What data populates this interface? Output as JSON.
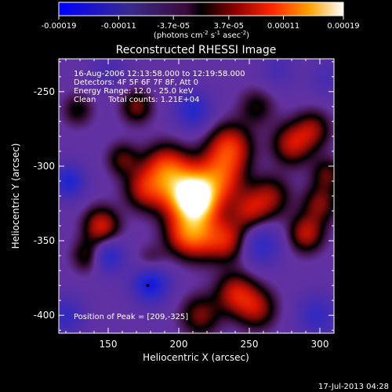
{
  "chart_data": {
    "type": "heatmap",
    "title": "Reconstructed RHESSI Image",
    "xlabel": "Heliocentric X (arcsec)",
    "ylabel": "Heliocentric Y (arcsec)",
    "xlim": [
      115,
      310
    ],
    "ylim": [
      -412,
      -228
    ],
    "xticks": [
      150,
      200,
      250,
      300
    ],
    "yticks": [
      -250,
      -300,
      -350,
      -400
    ],
    "colorbar": {
      "ticks": [
        "-0.00019",
        "-0.00011",
        "-3.7e-05",
        "3.7e-05",
        "0.00011",
        "0.00019"
      ],
      "range": [
        -0.00019,
        0.00019
      ],
      "unit_text": "(photons cm",
      "unit_exp1": "-2",
      "unit_mid": " s",
      "unit_exp2": "-1",
      "unit_mid2": " asec",
      "unit_exp3": "-2",
      "unit_close": ")"
    },
    "annotations": [
      "16-Aug-2006 12:13:58.000 to 12:19:58.000",
      "Detectors: 4F 5F 6F 7F 8F, Att 0",
      "Energy Range: 12.0 - 25.0 keV",
      "Clean     Total counts: 1.21E+04"
    ],
    "peak_label": "Position of Peak = [209,-325]",
    "peak": [
      209,
      -325
    ],
    "min_marker": [
      178,
      -380
    ],
    "blobs": [
      {
        "x": 212,
        "y": -322,
        "amp": 1.0,
        "s": 10
      },
      {
        "x": 200,
        "y": -315,
        "amp": 0.65,
        "s": 13
      },
      {
        "x": 228,
        "y": -308,
        "amp": 0.6,
        "s": 12
      },
      {
        "x": 236,
        "y": -287,
        "amp": 0.55,
        "s": 11
      },
      {
        "x": 190,
        "y": -300,
        "amp": 0.45,
        "s": 11
      },
      {
        "x": 175,
        "y": -315,
        "amp": 0.4,
        "s": 10
      },
      {
        "x": 215,
        "y": -345,
        "amp": 0.55,
        "s": 12
      },
      {
        "x": 235,
        "y": -350,
        "amp": 0.4,
        "s": 10
      },
      {
        "x": 250,
        "y": -330,
        "amp": 0.4,
        "s": 10
      },
      {
        "x": 265,
        "y": -320,
        "amp": 0.35,
        "s": 10
      },
      {
        "x": 280,
        "y": -285,
        "amp": 0.45,
        "s": 10
      },
      {
        "x": 295,
        "y": -275,
        "amp": 0.35,
        "s": 9
      },
      {
        "x": 290,
        "y": -345,
        "amp": 0.45,
        "s": 9
      },
      {
        "x": 300,
        "y": -325,
        "amp": 0.35,
        "s": 9
      },
      {
        "x": 305,
        "y": -305,
        "amp": 0.3,
        "s": 8
      },
      {
        "x": 145,
        "y": -340,
        "amp": 0.5,
        "s": 9
      },
      {
        "x": 160,
        "y": -295,
        "amp": 0.3,
        "s": 8
      },
      {
        "x": 170,
        "y": -260,
        "amp": 0.35,
        "s": 8
      },
      {
        "x": 240,
        "y": -385,
        "amp": 0.45,
        "s": 10
      },
      {
        "x": 255,
        "y": -395,
        "amp": 0.4,
        "s": 10
      },
      {
        "x": 215,
        "y": -400,
        "amp": 0.35,
        "s": 10
      },
      {
        "x": 135,
        "y": -360,
        "amp": 0.3,
        "s": 8
      },
      {
        "x": 180,
        "y": -365,
        "amp": 0.25,
        "s": 8
      },
      {
        "x": 128,
        "y": -262,
        "amp": 0.25,
        "s": 8
      },
      {
        "x": 203,
        "y": -345,
        "amp": 0.35,
        "s": 10
      },
      {
        "x": 255,
        "y": -260,
        "amp": 0.25,
        "s": 9
      },
      {
        "x": 180,
        "y": -378,
        "amp": -0.65,
        "s": 9
      },
      {
        "x": 122,
        "y": -310,
        "amp": -0.5,
        "s": 8
      },
      {
        "x": 150,
        "y": -360,
        "amp": -0.45,
        "s": 8
      },
      {
        "x": 210,
        "y": -262,
        "amp": -0.45,
        "s": 9
      },
      {
        "x": 258,
        "y": -352,
        "amp": -0.4,
        "s": 10
      },
      {
        "x": 120,
        "y": -400,
        "amp": -0.35,
        "s": 9
      },
      {
        "x": 298,
        "y": -400,
        "amp": -0.35,
        "s": 10
      },
      {
        "x": 150,
        "y": -235,
        "amp": -0.2,
        "s": 9
      },
      {
        "x": 305,
        "y": -240,
        "amp": -0.2,
        "s": 9
      },
      {
        "x": 270,
        "y": -235,
        "amp": -0.2,
        "s": 9
      }
    ]
  },
  "footer": {
    "timestamp": "17-Jul-2013 04:28"
  }
}
